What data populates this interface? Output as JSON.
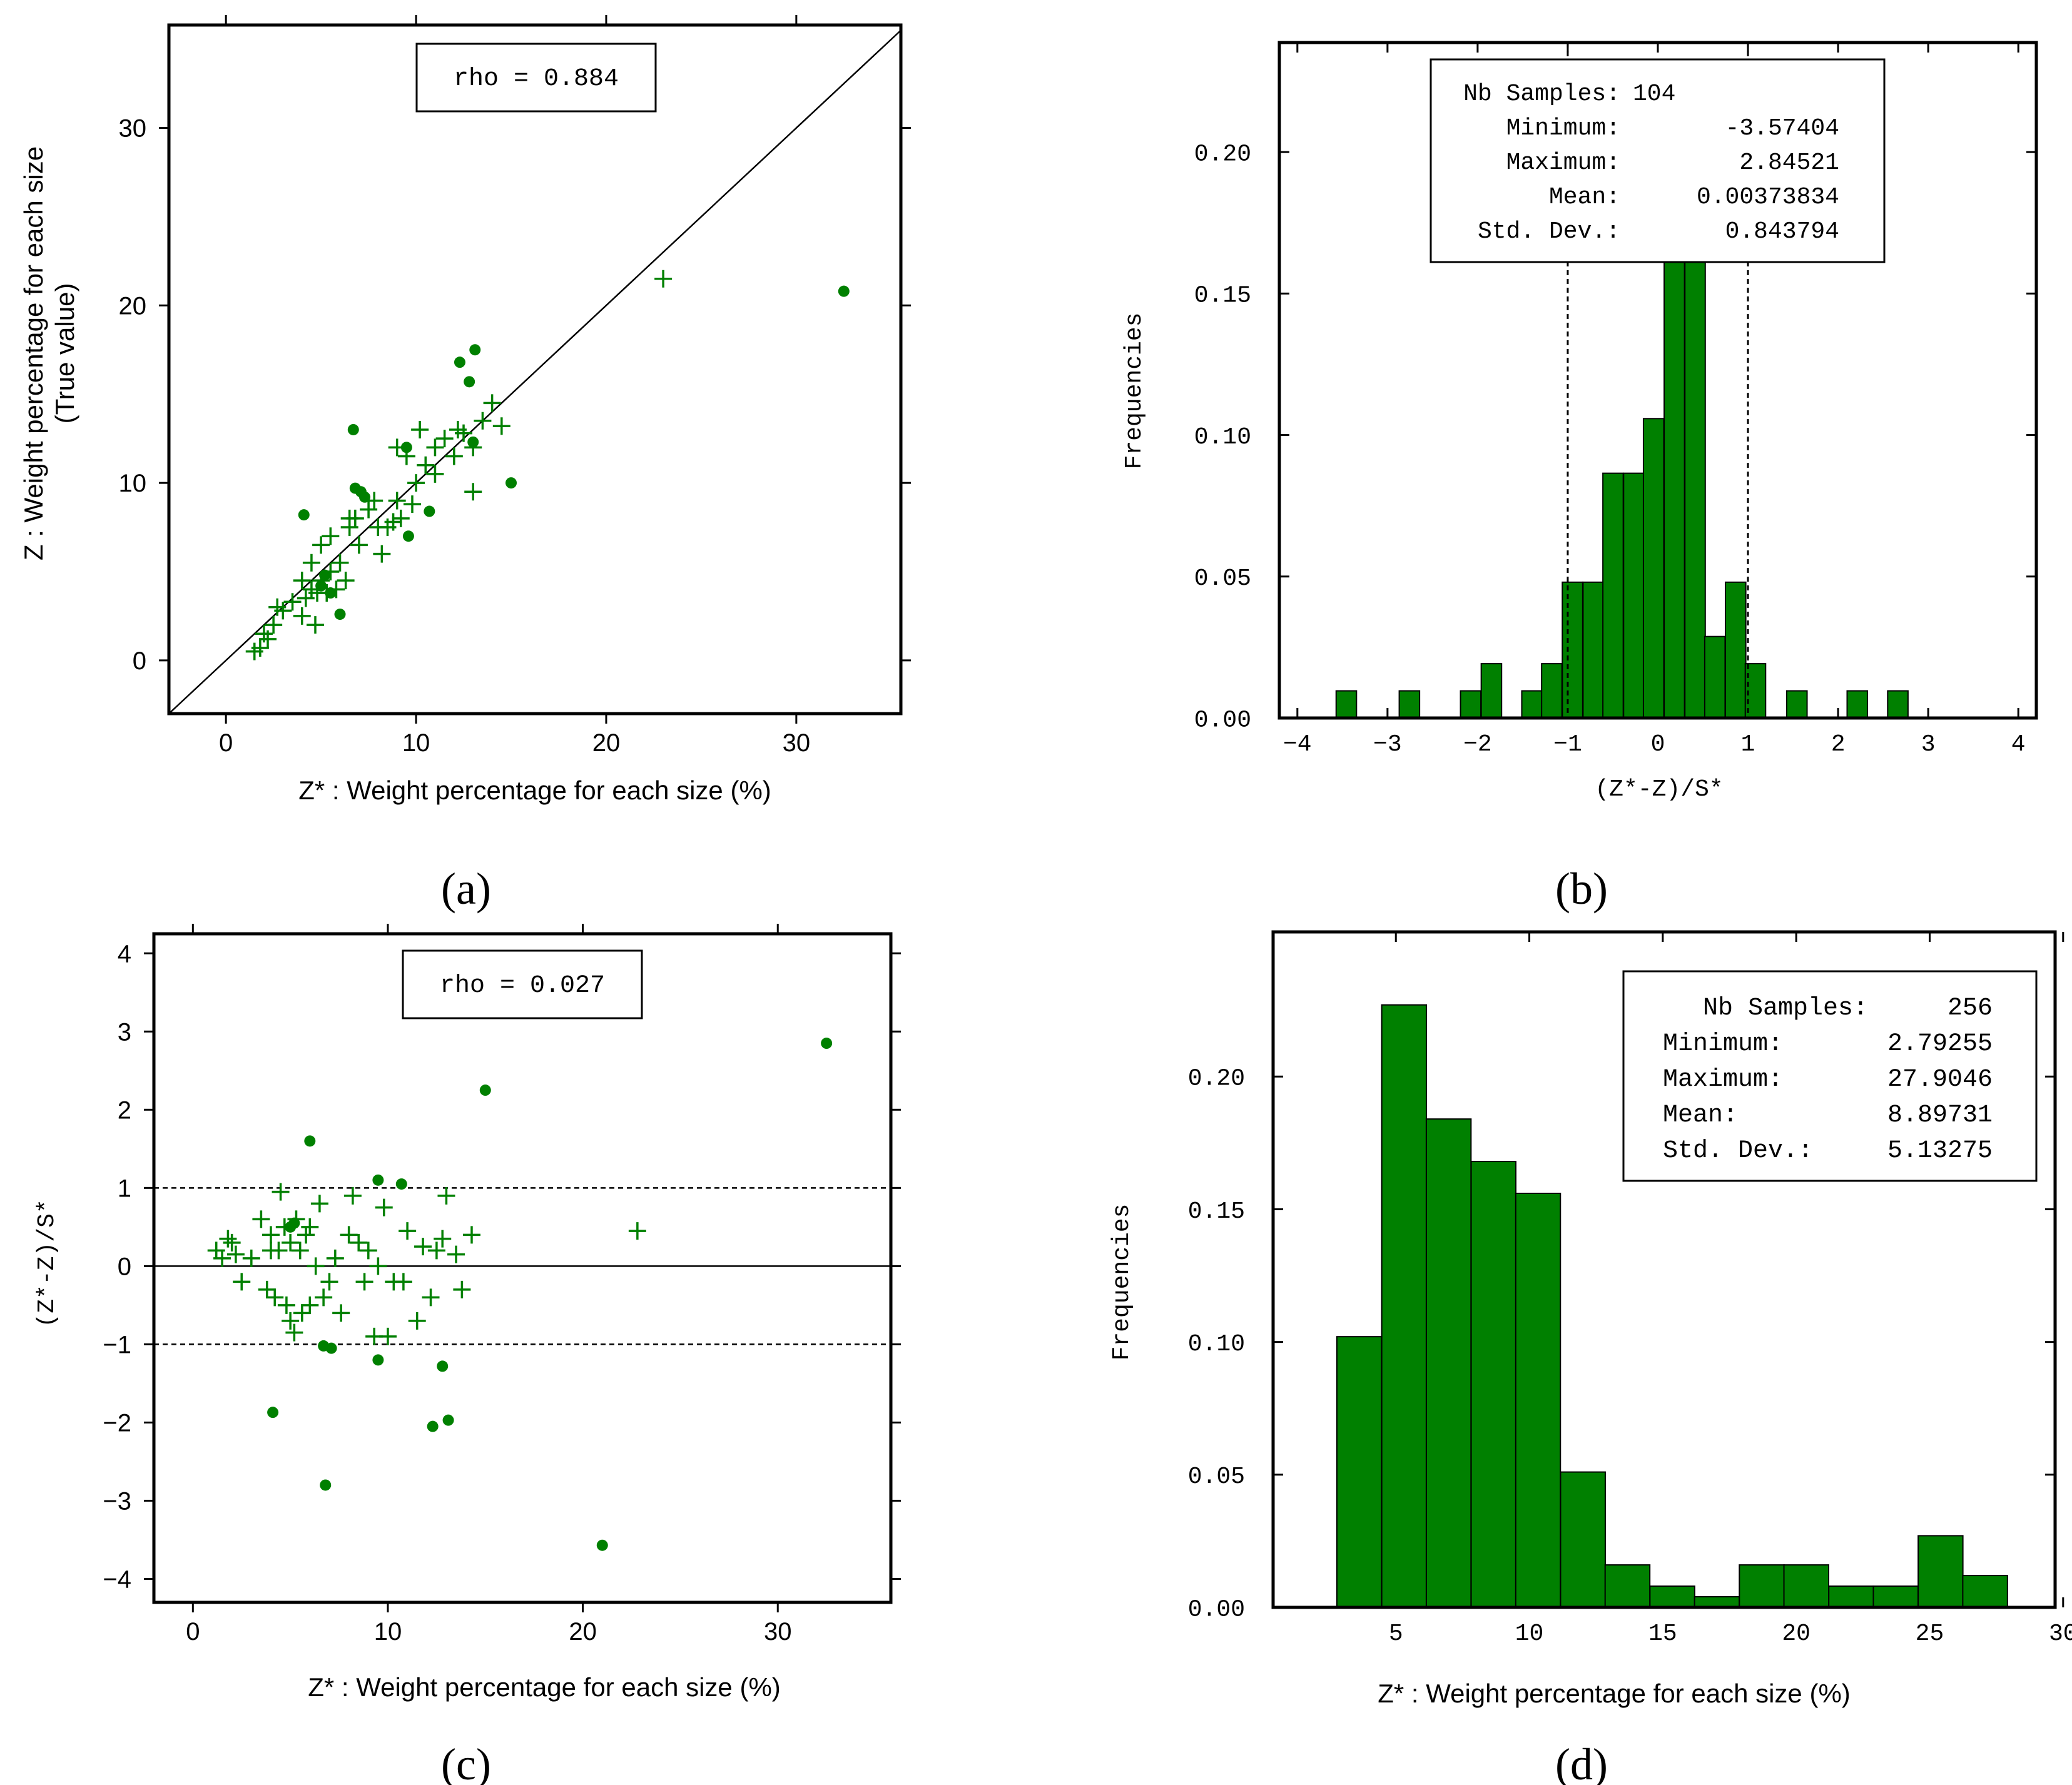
{
  "colors": {
    "accent": "#008000",
    "axis": "#000000",
    "background": "#ffffff"
  },
  "chart_data": [
    {
      "type": "scatter",
      "panel_label": "(a)",
      "xlabel": "Z* : Weight percentage for each size (%)",
      "ylabel_line1": "Z : Weight percentage for each size",
      "ylabel_line2": "(True value)",
      "xlim": [
        -3,
        35.5
      ],
      "ylim": [
        -3,
        35.8
      ],
      "xticks": [
        0,
        10,
        20,
        30
      ],
      "yticks": [
        0,
        10,
        20,
        30
      ],
      "annotation": "rho = 0.884",
      "reference_line": "y = x",
      "series": [
        {
          "name": "plus",
          "marker": "+",
          "points": [
            [
              1.5,
              0.5
            ],
            [
              1.8,
              0.7
            ],
            [
              2,
              1.5
            ],
            [
              2.2,
              1.2
            ],
            [
              2.5,
              2
            ],
            [
              2.7,
              3
            ],
            [
              3,
              2.8
            ],
            [
              3.5,
              3.3
            ],
            [
              4,
              2.5
            ],
            [
              4,
              4.5
            ],
            [
              4.2,
              3.5
            ],
            [
              4.5,
              4
            ],
            [
              4.5,
              5.5
            ],
            [
              4.7,
              2
            ],
            [
              4.8,
              3.8
            ],
            [
              5,
              6.5
            ],
            [
              5,
              4.5
            ],
            [
              5.3,
              3.8
            ],
            [
              5.5,
              5
            ],
            [
              5.5,
              7
            ],
            [
              5.8,
              4
            ],
            [
              6,
              5.5
            ],
            [
              6.3,
              4.5
            ],
            [
              6.5,
              7.5
            ],
            [
              6.8,
              8
            ],
            [
              7,
              6.5
            ],
            [
              7.5,
              8.5
            ],
            [
              7.8,
              9
            ],
            [
              8,
              7.5
            ],
            [
              8.2,
              6
            ],
            [
              8.5,
              7.5
            ],
            [
              8.8,
              7.8
            ],
            [
              9,
              9
            ],
            [
              9.2,
              8
            ],
            [
              9.5,
              11.5
            ],
            [
              9.8,
              8.8
            ],
            [
              10,
              10
            ],
            [
              10.2,
              13
            ],
            [
              10.5,
              11
            ],
            [
              11,
              10.5
            ],
            [
              11,
              12
            ],
            [
              11.5,
              12.5
            ],
            [
              12,
              11.5
            ],
            [
              12.2,
              13
            ],
            [
              12.5,
              12.8
            ],
            [
              13,
              12
            ],
            [
              13,
              9.5
            ],
            [
              13.5,
              13.5
            ],
            [
              14,
              14.5
            ],
            [
              14.5,
              13.2
            ],
            [
              23,
              21.5
            ],
            [
              9,
              12
            ],
            [
              6.5,
              8
            ]
          ]
        },
        {
          "name": "dot",
          "marker": "o",
          "points": [
            [
              4.1,
              8.2
            ],
            [
              6,
              2.6
            ],
            [
              6.7,
              13
            ],
            [
              6.8,
              9.7
            ],
            [
              7.1,
              9.5
            ],
            [
              7.3,
              9.2
            ],
            [
              9.5,
              12
            ],
            [
              9.6,
              7
            ],
            [
              10.7,
              8.4
            ],
            [
              12.3,
              16.8
            ],
            [
              12.8,
              15.7
            ],
            [
              13.1,
              17.5
            ],
            [
              13,
              12.3
            ],
            [
              15,
              10
            ],
            [
              32.5,
              20.8
            ],
            [
              5,
              4.2
            ],
            [
              5.2,
              4.8
            ],
            [
              5.5,
              3.8
            ]
          ]
        }
      ]
    },
    {
      "type": "bar",
      "panel_label": "(b)",
      "xlabel": "(Z*-Z)/S*",
      "ylabel": "Frequencies",
      "xlim": [
        -4.2,
        4.2
      ],
      "ylim": [
        0,
        0.2387
      ],
      "xticks": [
        -4,
        -3,
        -2,
        -1,
        0,
        1,
        2,
        3,
        4
      ],
      "yticks": [
        "0.00",
        "0.05",
        "0.10",
        "0.15",
        "0.20"
      ],
      "bin_width": 0.226,
      "bins": [
        [
          -3.57,
          0.0096
        ],
        [
          -2.87,
          0.0096
        ],
        [
          -2.19,
          0.0096
        ],
        [
          -1.96,
          0.0192
        ],
        [
          -1.51,
          0.0096
        ],
        [
          -1.29,
          0.0192
        ],
        [
          -1.06,
          0.048
        ],
        [
          -0.83,
          0.048
        ],
        [
          -0.61,
          0.0865
        ],
        [
          -0.38,
          0.0865
        ],
        [
          -0.16,
          0.1058
        ],
        [
          0.07,
          0.1731
        ],
        [
          0.3,
          0.1731
        ],
        [
          0.52,
          0.0288
        ],
        [
          0.75,
          0.048
        ],
        [
          0.97,
          0.0192
        ],
        [
          1.43,
          0.0096
        ],
        [
          2.1,
          0.0096
        ],
        [
          2.55,
          0.0096
        ]
      ],
      "stats": [
        {
          "label": "Nb Samples:",
          "value": "104"
        },
        {
          "label": "Minimum:",
          "value": "-3.57404"
        },
        {
          "label": "Maximum:",
          "value": "2.84521"
        },
        {
          "label": "Mean:",
          "value": "0.00373834"
        },
        {
          "label": "Std. Dev.:",
          "value": "0.843794"
        }
      ],
      "dashed_lines_x": [
        -1,
        1
      ]
    },
    {
      "type": "scatter",
      "panel_label": "(c)",
      "xlabel": "Z* : Weight percentage for each size (%)",
      "ylabel": "(Z*-Z)/S*",
      "xlim": [
        -2,
        35.8
      ],
      "ylim": [
        -4.3,
        4.25
      ],
      "xticks": [
        0,
        10,
        20,
        30
      ],
      "yticks": [
        -4,
        -3,
        -2,
        -1,
        0,
        1,
        2,
        3,
        4
      ],
      "annotation": "rho = 0.027",
      "hlines": [
        {
          "y": 0,
          "style": "solid"
        },
        {
          "y": 1,
          "style": "dashed"
        },
        {
          "y": -1,
          "style": "dashed"
        }
      ],
      "series": [
        {
          "name": "plus",
          "marker": "+",
          "points": [
            [
              1.2,
              0.2
            ],
            [
              1.5,
              0.1
            ],
            [
              1.8,
              0.35
            ],
            [
              2,
              0.3
            ],
            [
              2.2,
              0.15
            ],
            [
              2.5,
              -0.2
            ],
            [
              3,
              0.1
            ],
            [
              3.5,
              0.6
            ],
            [
              3.8,
              -0.3
            ],
            [
              4,
              0.4
            ],
            [
              4.2,
              -0.4
            ],
            [
              4.4,
              0.2
            ],
            [
              4.5,
              0.95
            ],
            [
              4.7,
              0.5
            ],
            [
              4.8,
              -0.5
            ],
            [
              5,
              0.3
            ],
            [
              5,
              -0.7
            ],
            [
              5.2,
              -0.85
            ],
            [
              5.3,
              0.6
            ],
            [
              5.5,
              0.2
            ],
            [
              5.6,
              -0.6
            ],
            [
              5.8,
              0.4
            ],
            [
              6,
              -0.5
            ],
            [
              6.3,
              0
            ],
            [
              6.5,
              0.8
            ],
            [
              6.7,
              -0.4
            ],
            [
              7,
              -0.2
            ],
            [
              7.3,
              0.1
            ],
            [
              7.6,
              -0.6
            ],
            [
              8,
              0.4
            ],
            [
              8.2,
              0.9
            ],
            [
              8.5,
              0.3
            ],
            [
              8.8,
              -0.2
            ],
            [
              9,
              0.2
            ],
            [
              9.3,
              -0.9
            ],
            [
              9.5,
              0
            ],
            [
              9.8,
              0.75
            ],
            [
              10,
              -0.9
            ],
            [
              10.3,
              -0.2
            ],
            [
              10.8,
              -0.2
            ],
            [
              11,
              0.45
            ],
            [
              11.5,
              -0.7
            ],
            [
              11.8,
              0.25
            ],
            [
              12.2,
              -0.4
            ],
            [
              12.5,
              0.2
            ],
            [
              12.8,
              0.35
            ],
            [
              13,
              0.9
            ],
            [
              13.5,
              0.15
            ],
            [
              13.8,
              -0.3
            ],
            [
              14.3,
              0.4
            ],
            [
              22.8,
              0.45
            ],
            [
              4,
              0.2
            ],
            [
              6,
              0.5
            ]
          ]
        },
        {
          "name": "dot",
          "marker": "o",
          "points": [
            [
              6,
              1.6
            ],
            [
              9.5,
              1.1
            ],
            [
              10.7,
              1.05
            ],
            [
              15,
              2.25
            ],
            [
              32.5,
              2.85
            ],
            [
              6.7,
              -1.02
            ],
            [
              7.1,
              -1.05
            ],
            [
              9.5,
              -1.2
            ],
            [
              12.8,
              -1.28
            ],
            [
              4.1,
              -1.87
            ],
            [
              12.3,
              -2.05
            ],
            [
              13.1,
              -1.97
            ],
            [
              6.8,
              -2.8
            ],
            [
              21,
              -3.57
            ],
            [
              5,
              0.5
            ],
            [
              5.2,
              0.55
            ]
          ]
        }
      ]
    },
    {
      "type": "bar",
      "panel_label": "(d)",
      "xlabel": "Z* : Weight percentage for each size (%)",
      "ylabel": "Frequencies",
      "xlim": [
        0.4,
        29.7
      ],
      "ylim": [
        0,
        0.2545
      ],
      "xticks": [
        5,
        10,
        15,
        20,
        25,
        30
      ],
      "yticks": [
        "0.00",
        "0.05",
        "0.10",
        "0.15",
        "0.20"
      ],
      "bin_width": 1.675,
      "bins": [
        [
          2.79,
          0.102
        ],
        [
          4.47,
          0.227
        ],
        [
          6.14,
          0.184
        ],
        [
          7.82,
          0.168
        ],
        [
          9.49,
          0.156
        ],
        [
          11.17,
          0.051
        ],
        [
          12.84,
          0.016
        ],
        [
          14.52,
          0.008
        ],
        [
          16.19,
          0.004
        ],
        [
          17.87,
          0.016
        ],
        [
          19.54,
          0.016
        ],
        [
          21.22,
          0.008
        ],
        [
          22.89,
          0.008
        ],
        [
          24.57,
          0.027
        ],
        [
          26.24,
          0.012
        ]
      ],
      "stats": [
        {
          "label": "Nb Samples:",
          "value": "256"
        },
        {
          "label": "Minimum:",
          "value": "2.79255"
        },
        {
          "label": "Maximum:",
          "value": "27.9046"
        },
        {
          "label": "Mean:",
          "value": "8.89731"
        },
        {
          "label": "Std. Dev.:",
          "value": "5.13275"
        }
      ]
    }
  ]
}
